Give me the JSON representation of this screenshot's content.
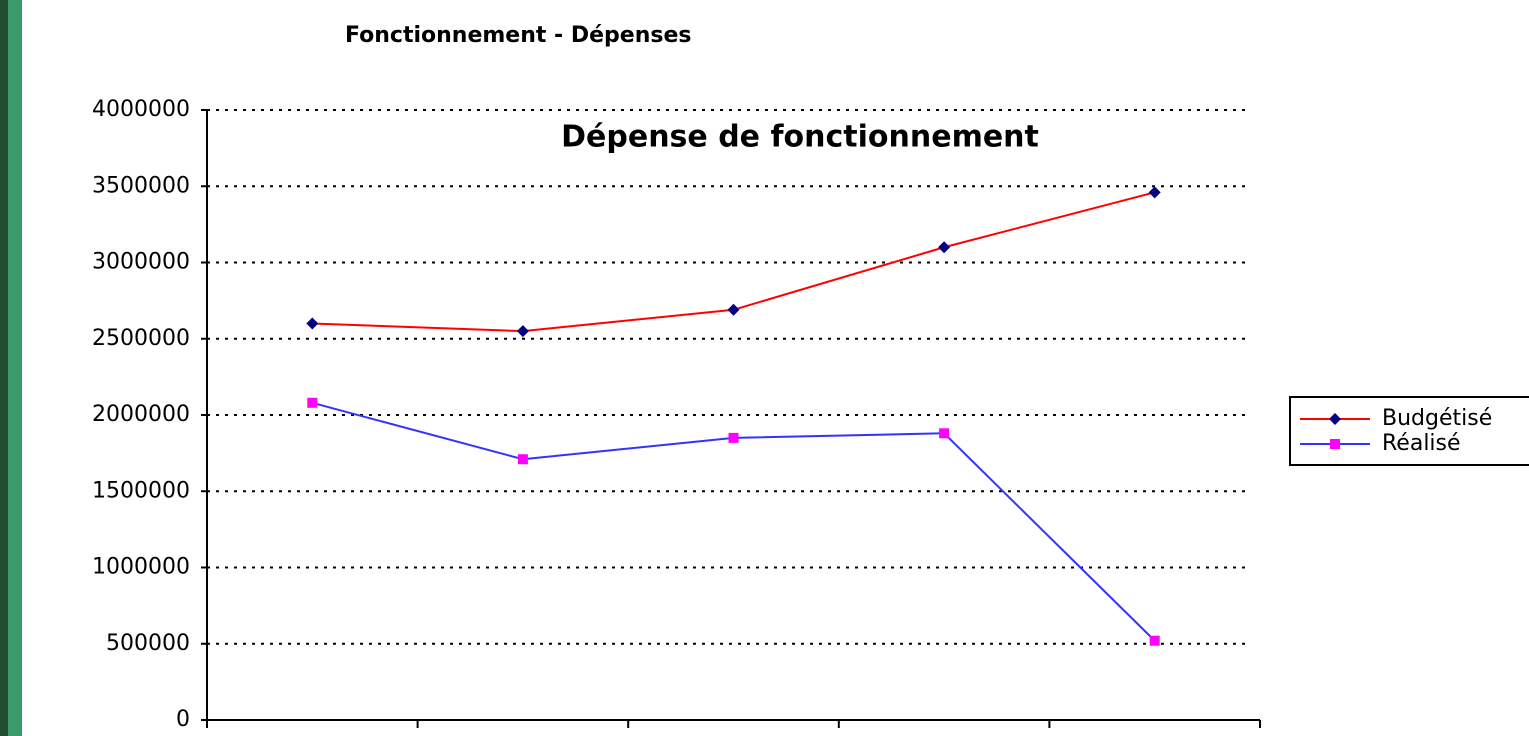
{
  "heading": "Fonctionnement - Dépenses",
  "chart_data": {
    "type": "line",
    "title": "Dépense de fonctionnement",
    "categories": [
      null,
      null,
      null,
      null,
      null
    ],
    "series": [
      {
        "name": "Budgétisé",
        "color": "#ff0000",
        "marker_color": "#000080",
        "marker": "diamond",
        "values": [
          2600000,
          2550000,
          2690000,
          3100000,
          3460000
        ]
      },
      {
        "name": "Réalisé",
        "color": "#3333ff",
        "marker_color": "#ff00ff",
        "marker": "square",
        "values": [
          2080000,
          1710000,
          1850000,
          1880000,
          520000
        ]
      }
    ],
    "ylim": [
      0,
      4000000
    ],
    "yticks": [
      0,
      500000,
      1000000,
      1500000,
      2000000,
      2500000,
      3000000,
      3500000,
      4000000
    ],
    "grid": true,
    "legend": "right"
  }
}
